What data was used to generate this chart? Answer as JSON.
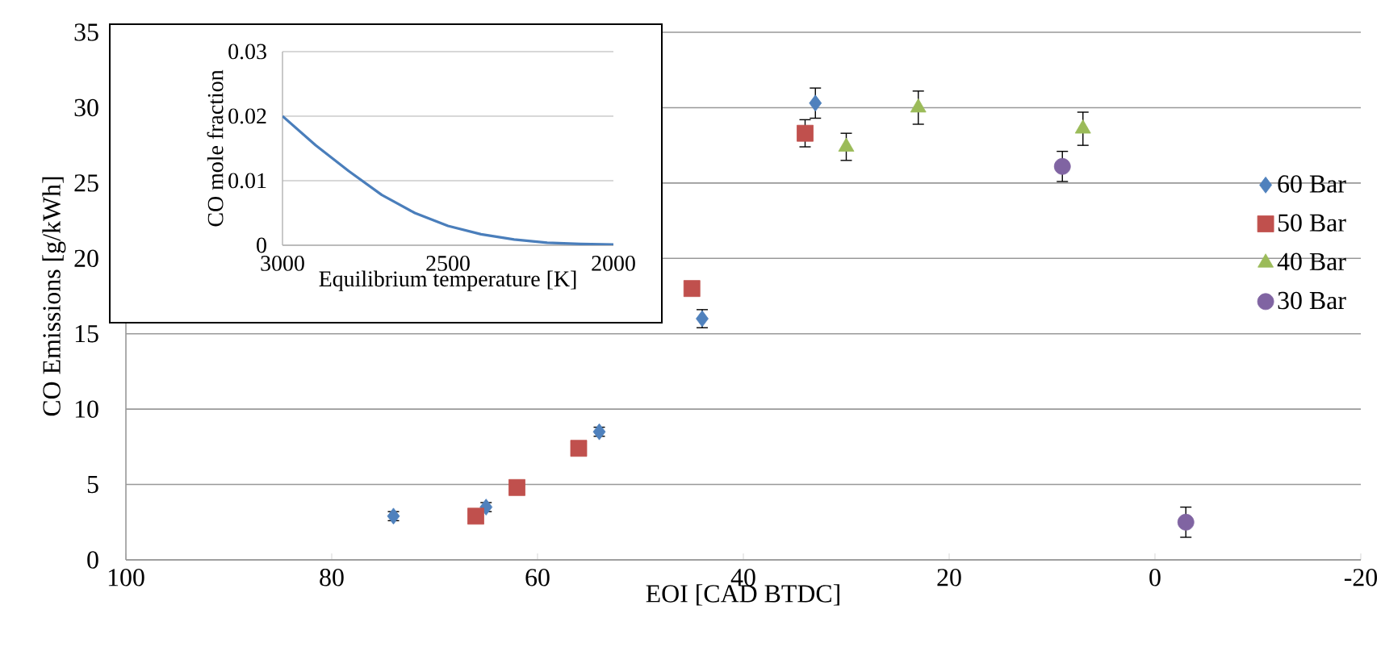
{
  "chart_data": [
    {
      "type": "scatter",
      "xlabel": "EOI [CAD BTDC]",
      "ylabel": "CO Emissions [g/kWh]",
      "xlim": [
        100,
        -20
      ],
      "ylim": [
        0,
        35
      ],
      "xticks": [
        100,
        80,
        60,
        40,
        20,
        0,
        -20
      ],
      "yticks": [
        0,
        5,
        10,
        15,
        20,
        25,
        30,
        35
      ],
      "grid": "y",
      "legend": "right",
      "series": [
        {
          "name": "60 Bar",
          "color": "#4f81bd",
          "marker": "diamond",
          "x": [
            74,
            65,
            54,
            44,
            33
          ],
          "values": [
            2.9,
            3.5,
            8.5,
            16,
            30.3
          ],
          "errors": [
            0.3,
            0.3,
            0.3,
            0.6,
            1.0
          ]
        },
        {
          "name": "50 Bar",
          "color": "#c0504d",
          "marker": "square",
          "x": [
            66,
            62,
            56,
            45,
            34
          ],
          "values": [
            2.9,
            4.8,
            7.4,
            18,
            28.3
          ],
          "errors": [
            null,
            null,
            null,
            null,
            0.9
          ]
        },
        {
          "name": "40 Bar",
          "color": "#9bbb59",
          "marker": "triangle",
          "x": [
            30,
            23,
            7
          ],
          "values": [
            27.4,
            30,
            28.6
          ],
          "errors": [
            0.9,
            1.1,
            1.1
          ]
        },
        {
          "name": "30 Bar",
          "color": "#8064a2",
          "marker": "circle",
          "x": [
            9,
            -3
          ],
          "values": [
            26.1,
            2.5
          ],
          "errors": [
            1.0,
            1.0
          ]
        }
      ]
    },
    {
      "type": "line",
      "xlabel": "Equilibrium temperature [K]",
      "ylabel": "CO mole fraction",
      "xlim": [
        3000,
        2000
      ],
      "ylim": [
        0,
        0.03
      ],
      "xticks": [
        3000,
        2500,
        2000
      ],
      "yticks": [
        0,
        0.01,
        0.02,
        0.03
      ],
      "grid": "y",
      "series": [
        {
          "color": "#4a7ebb",
          "x": [
            3000,
            2900,
            2800,
            2700,
            2600,
            2500,
            2400,
            2300,
            2200,
            2100,
            2000
          ],
          "values": [
            0.02,
            0.0155,
            0.0115,
            0.0078,
            0.005,
            0.003,
            0.0017,
            0.0009,
            0.0004,
            0.0002,
            0.0001
          ]
        }
      ]
    }
  ]
}
